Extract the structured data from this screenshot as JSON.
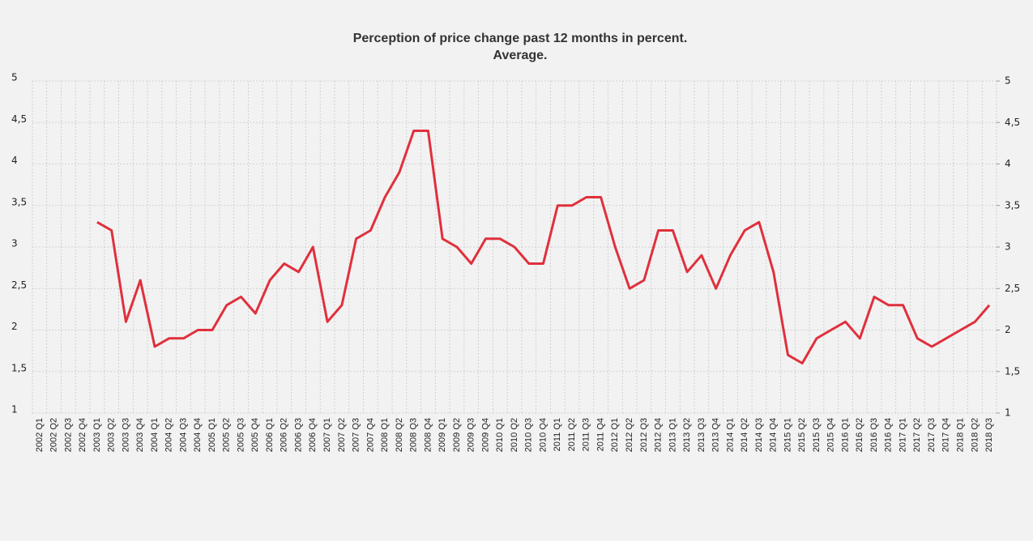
{
  "chart_data": {
    "type": "line",
    "title": [
      "Perception of price change past 12 months in percent.",
      "Average."
    ],
    "categories": [
      "2002 Q1",
      "2002 Q2",
      "2002 Q3",
      "2002 Q4",
      "2003 Q1",
      "2003 Q2",
      "2003 Q3",
      "2003 Q4",
      "2004 Q1",
      "2004 Q2",
      "2004 Q3",
      "2004 Q4",
      "2005 Q1",
      "2005 Q2",
      "2005 Q3",
      "2005 Q4",
      "2006 Q1",
      "2006 Q2",
      "2006 Q3",
      "2006 Q4",
      "2007 Q1",
      "2007 Q2",
      "2007 Q3",
      "2007 Q4",
      "2008 Q1",
      "2008 Q2",
      "2008 Q3",
      "2008 Q4",
      "2009 Q1",
      "2009 Q2",
      "2009 Q3",
      "2009 Q4",
      "2010 Q1",
      "2010 Q2",
      "2010 Q3",
      "2010 Q4",
      "2011 Q1",
      "2011 Q2",
      "2011 Q3",
      "2011 Q4",
      "2012 Q1",
      "2012 Q2",
      "2012 Q3",
      "2012 Q4",
      "2013 Q1",
      "2013 Q2",
      "2013 Q3",
      "2013 Q4",
      "2014 Q1",
      "2014 Q2",
      "2014 Q3",
      "2014 Q4",
      "2015 Q1",
      "2015 Q2",
      "2015 Q3",
      "2015 Q4",
      "2016 Q1",
      "2016 Q2",
      "2016 Q3",
      "2016 Q4",
      "2017 Q1",
      "2017 Q2",
      "2017 Q3",
      "2017 Q4",
      "2018 Q1",
      "2018 Q2",
      "2018 Q3"
    ],
    "values": [
      null,
      null,
      null,
      null,
      3.3,
      3.2,
      2.1,
      2.6,
      1.8,
      1.9,
      1.9,
      2.0,
      2.0,
      2.3,
      2.4,
      2.2,
      2.6,
      2.8,
      2.7,
      3.0,
      2.1,
      2.3,
      3.1,
      3.2,
      3.6,
      3.9,
      4.4,
      4.4,
      3.1,
      3.0,
      2.8,
      3.1,
      3.1,
      3.0,
      2.8,
      2.8,
      3.5,
      3.5,
      3.6,
      3.6,
      3.0,
      2.5,
      2.6,
      3.2,
      3.2,
      2.7,
      2.9,
      2.5,
      2.9,
      3.2,
      3.3,
      2.7,
      1.7,
      1.6,
      1.9,
      2.0,
      2.1,
      1.9,
      2.4,
      2.3,
      2.3,
      1.9,
      1.8,
      1.9,
      2.0,
      2.1,
      2.3
    ],
    "color": "#e0303c",
    "ylim": [
      1,
      5
    ],
    "yticks": [
      1,
      {
        "value": 1.5,
        "label": "1,5"
      },
      2,
      {
        "value": 2.5,
        "label": "2,5"
      },
      3,
      {
        "value": 3.5,
        "label": "3,5"
      },
      4,
      {
        "value": 4.5,
        "label": "4,5"
      },
      5
    ],
    "y2lim": [
      1,
      5
    ],
    "y2ticks": [
      1,
      {
        "value": 1.5,
        "label": "1,5"
      },
      2,
      {
        "value": 2.5,
        "label": "2,5"
      },
      3,
      {
        "value": 3.5,
        "label": "3,5"
      },
      4,
      {
        "value": 4.5,
        "label": "4,5"
      },
      5
    ],
    "grid": true
  }
}
